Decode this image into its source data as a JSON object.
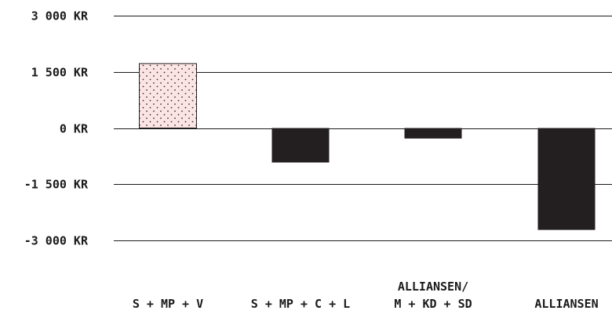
{
  "chart_data": {
    "type": "bar",
    "categories": [
      [
        "S + MP + V"
      ],
      [
        "S + MP + C + L"
      ],
      [
        "ALLIANSEN/",
        "M + KD + SD"
      ],
      [
        "ALLIANSEN"
      ]
    ],
    "values": [
      1720,
      -920,
      -280,
      -2720
    ],
    "ylim": [
      -3000,
      3000
    ],
    "yticks": [
      3000,
      1500,
      0,
      -1500,
      -3000
    ],
    "ytick_labels": [
      "3 000 KR",
      "1 500 KR",
      "0 KR",
      "-1 500 KR",
      "-3 000 KR"
    ],
    "grid": true,
    "colors": {
      "positive_fill": "#fde4e4",
      "positive_dots": "#333333",
      "negative_fill": "#231f20",
      "grid": "#1a1a1a",
      "text": "#1a1a1a"
    }
  }
}
